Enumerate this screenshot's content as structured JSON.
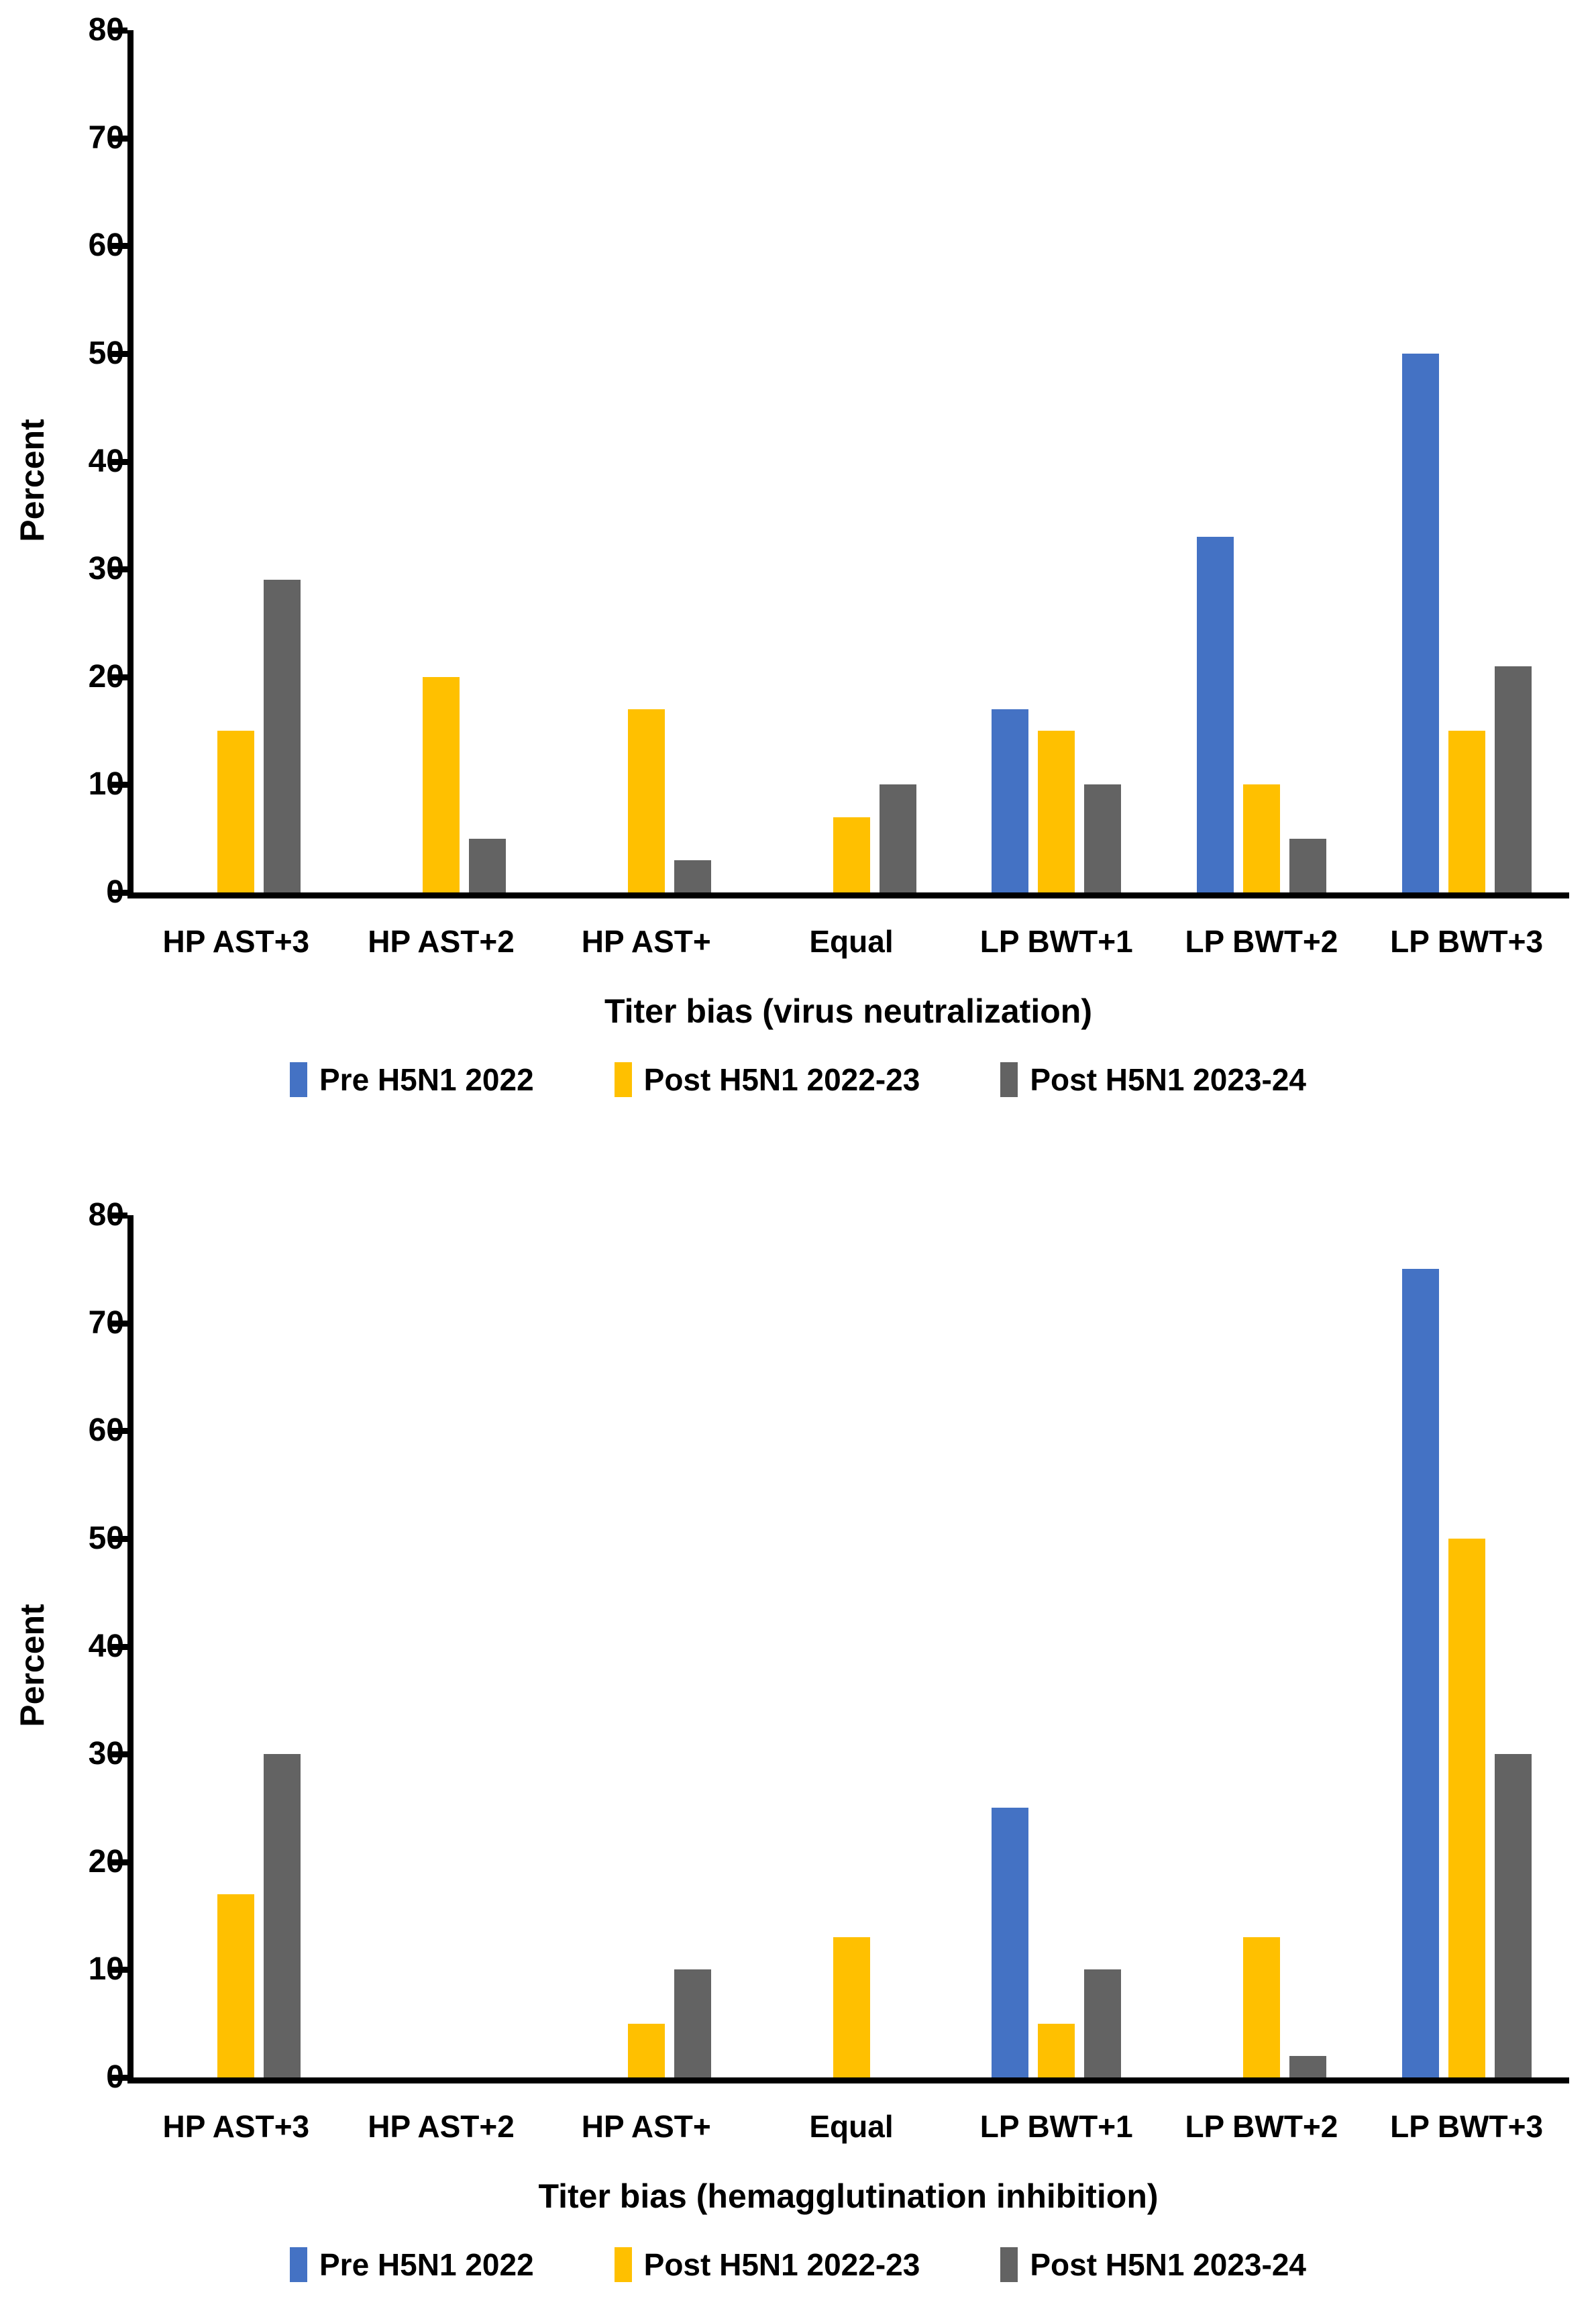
{
  "figure_background": "#ffffff",
  "axis_color": "#000000",
  "chart_data": [
    {
      "type": "bar",
      "title": "",
      "ylabel": "Percent",
      "xlabel": "Titer bias (virus neutralization)",
      "ylim": [
        0,
        80
      ],
      "ytick_step": 10,
      "grid": "off",
      "legend_position": "bottom",
      "categories": [
        "HP AST+3",
        "HP AST+2",
        "HP AST+",
        "Equal",
        "LP BWT+1",
        "LP BWT+2",
        "LP BWT+3"
      ],
      "series": [
        {
          "name": "Pre H5N1 2022",
          "color": "#4472C4",
          "values": [
            0,
            0,
            0,
            0,
            17,
            33,
            50
          ]
        },
        {
          "name": "Post H5N1 2022-23",
          "color": "#FFC000",
          "values": [
            15,
            20,
            17,
            7,
            15,
            10,
            15
          ]
        },
        {
          "name": "Post H5N1 2023-24",
          "color": "#636363",
          "values": [
            29,
            5,
            3,
            10,
            10,
            5,
            21
          ]
        }
      ]
    },
    {
      "type": "bar",
      "title": "",
      "ylabel": "Percent",
      "xlabel": "Titer bias (hemagglutination inhibition)",
      "ylim": [
        0,
        80
      ],
      "ytick_step": 10,
      "grid": "off",
      "legend_position": "bottom",
      "categories": [
        "HP AST+3",
        "HP AST+2",
        "HP AST+",
        "Equal",
        "LP BWT+1",
        "LP BWT+2",
        "LP BWT+3"
      ],
      "series": [
        {
          "name": "Pre H5N1 2022",
          "color": "#4472C4",
          "values": [
            0,
            0,
            0,
            0,
            25,
            0,
            75
          ]
        },
        {
          "name": "Post H5N1 2022-23",
          "color": "#FFC000",
          "values": [
            17,
            0,
            5,
            13,
            5,
            13,
            50
          ]
        },
        {
          "name": "Post H5N1 2023-24",
          "color": "#636363",
          "values": [
            30,
            0,
            10,
            0,
            10,
            2,
            30
          ]
        }
      ]
    }
  ]
}
